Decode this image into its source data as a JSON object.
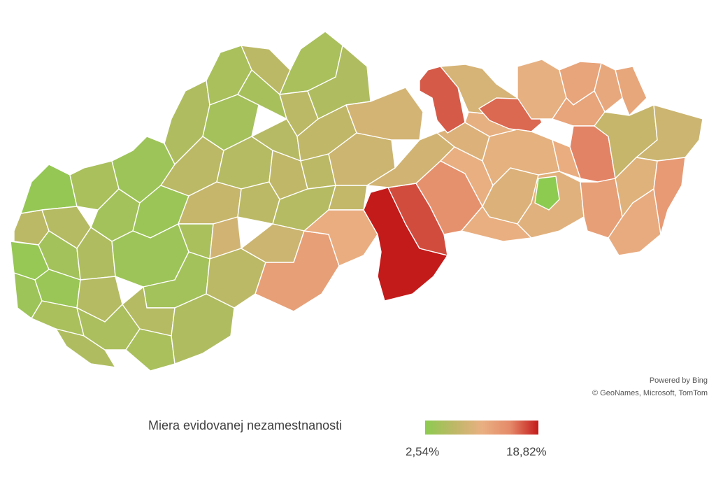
{
  "map": {
    "attribution": {
      "powered_by": "Powered by Bing",
      "copyright": "© GeoNames, Microsoft, TomTom"
    },
    "legend": {
      "title": "Miera evidovanej nezamestnanosti",
      "min_label": "2,54%",
      "max_label": "18,82%",
      "min_value": 2.54,
      "max_value": 18.82,
      "colors": [
        "#8ccb50",
        "#bcb866",
        "#e9b082",
        "#e58a6a",
        "#c31a1a"
      ]
    },
    "regions": [
      {
        "name": "region-west-1",
        "value": 6.5
      },
      {
        "name": "region-west-2",
        "value": 3.5
      },
      {
        "name": "region-west-3",
        "value": 4.0
      },
      {
        "name": "region-west-4",
        "value": 3.3
      },
      {
        "name": "region-west-5",
        "value": 6.0
      },
      {
        "name": "region-west-6",
        "value": 4.5
      },
      {
        "name": "region-west-7",
        "value": 3.6
      },
      {
        "name": "region-west-8",
        "value": 5.0
      },
      {
        "name": "region-west-9",
        "value": 5.5
      },
      {
        "name": "region-west-10",
        "value": 5.0
      },
      {
        "name": "region-west-11",
        "value": 4.5
      },
      {
        "name": "region-west-12",
        "value": 5.5
      },
      {
        "name": "region-west-13",
        "value": 6.0
      },
      {
        "name": "region-west-14",
        "value": 5.2
      },
      {
        "name": "region-west-15",
        "value": 4.0
      },
      {
        "name": "region-west-16",
        "value": 3.8
      },
      {
        "name": "region-west-17",
        "value": 4.0
      },
      {
        "name": "region-north-1",
        "value": 5.5
      },
      {
        "name": "region-north-2",
        "value": 6.5
      },
      {
        "name": "region-north-3",
        "value": 5.0
      },
      {
        "name": "region-north-4",
        "value": 4.6
      },
      {
        "name": "region-north-5",
        "value": 6.5
      },
      {
        "name": "region-north-6",
        "value": 4.8
      },
      {
        "name": "region-north-7",
        "value": 5.0
      },
      {
        "name": "region-north-8",
        "value": 6.5
      },
      {
        "name": "region-north-9",
        "value": 5.5
      },
      {
        "name": "region-central-1",
        "value": 6.0
      },
      {
        "name": "region-central-2",
        "value": 7.5
      },
      {
        "name": "region-central-3",
        "value": 5.0
      },
      {
        "name": "region-central-4",
        "value": 6.2
      },
      {
        "name": "region-central-5",
        "value": 7.0
      },
      {
        "name": "region-central-6",
        "value": 6.5
      },
      {
        "name": "region-central-7",
        "value": 8.5
      },
      {
        "name": "region-central-8",
        "value": 7.0
      },
      {
        "name": "region-central-9",
        "value": 6.5
      },
      {
        "name": "region-central-10",
        "value": 8.0
      },
      {
        "name": "region-central-11",
        "value": 8.7
      },
      {
        "name": "region-central-12",
        "value": 6.0
      },
      {
        "name": "region-central-13",
        "value": 7.2
      },
      {
        "name": "region-south-1",
        "value": 4.5
      },
      {
        "name": "region-south-2",
        "value": 6.0
      },
      {
        "name": "region-south-3",
        "value": 5.0
      },
      {
        "name": "region-south-4",
        "value": 5.5
      },
      {
        "name": "region-south-5",
        "value": 6.5
      },
      {
        "name": "region-south-6",
        "value": 8.0
      },
      {
        "name": "region-east-1",
        "value": 12.5
      },
      {
        "name": "region-east-2",
        "value": 11.0
      },
      {
        "name": "region-east-3",
        "value": 18.82
      },
      {
        "name": "region-east-4",
        "value": 17.0
      },
      {
        "name": "region-east-5",
        "value": 14.0
      },
      {
        "name": "region-east-6",
        "value": 8.5
      },
      {
        "name": "region-east-7",
        "value": 9.5
      },
      {
        "name": "region-east-8",
        "value": 10.8
      },
      {
        "name": "region-east-9",
        "value": 10.5
      },
      {
        "name": "region-east-10",
        "value": 16.5
      },
      {
        "name": "region-east-11",
        "value": 9.0
      },
      {
        "name": "region-east-12",
        "value": 7.5
      },
      {
        "name": "region-east-13",
        "value": 16.0
      },
      {
        "name": "region-east-14",
        "value": 10.2
      },
      {
        "name": "region-east-15",
        "value": 9.5
      },
      {
        "name": "region-east-16",
        "value": 10.8
      },
      {
        "name": "region-east-17",
        "value": 10.0
      },
      {
        "name": "region-east-18",
        "value": 2.54
      },
      {
        "name": "region-east-19",
        "value": 10.5
      },
      {
        "name": "region-east-20",
        "value": 12.0
      },
      {
        "name": "region-east-21",
        "value": 11.5
      },
      {
        "name": "region-east-22",
        "value": 11.8
      },
      {
        "name": "region-east-23",
        "value": 12.0
      },
      {
        "name": "region-east-24",
        "value": 15.0
      },
      {
        "name": "region-east-25",
        "value": 11.0
      },
      {
        "name": "region-east-26",
        "value": 7.5
      },
      {
        "name": "region-east-27",
        "value": 8.0
      },
      {
        "name": "region-east-28",
        "value": 12.5
      },
      {
        "name": "region-east-29",
        "value": 9.8
      },
      {
        "name": "region-east-30",
        "value": 11.2
      },
      {
        "name": "region-east-31",
        "value": 13.0
      }
    ]
  }
}
